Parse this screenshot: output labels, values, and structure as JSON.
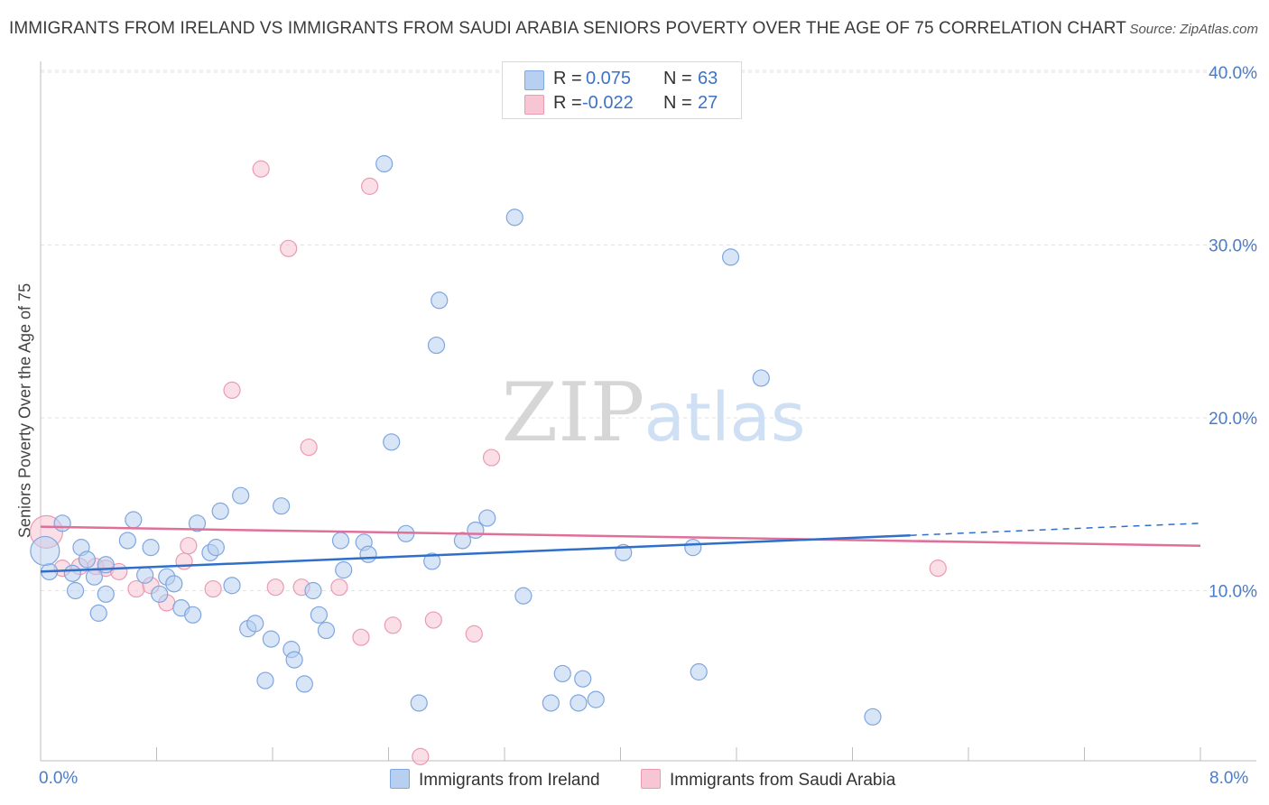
{
  "header": {
    "title": "IMMIGRANTS FROM IRELAND VS IMMIGRANTS FROM SAUDI ARABIA SENIORS POVERTY OVER THE AGE OF 75 CORRELATION CHART",
    "source": "Source: ZipAtlas.com"
  },
  "watermark": {
    "zip": "ZIP",
    "atlas": "atlas"
  },
  "legend": {
    "rows": [
      {
        "r_label": "R =",
        "r_value": "0.075",
        "n_label": "N =",
        "n_value": "63"
      },
      {
        "r_label": "R =",
        "r_value": "-0.022",
        "n_label": "N =",
        "n_value": "27"
      }
    ]
  },
  "colors": {
    "ireland_fill": "#b8d0f0",
    "ireland_stroke": "#7ea6e0",
    "ireland_line": "#2f6fc9",
    "saudi_fill": "#f7c5d3",
    "saudi_stroke": "#eb9ab4",
    "saudi_line": "#e0709a",
    "tick_text": "#4a7cc7",
    "grid": "#e2e2e2"
  },
  "chart_data": {
    "type": "scatter",
    "title": "IMMIGRANTS FROM IRELAND VS IMMIGRANTS FROM SAUDI ARABIA SENIORS POVERTY OVER THE AGE OF 75 CORRELATION CHART",
    "xlabel": "",
    "ylabel": "Seniors Poverty Over the Age of 75",
    "xlim": [
      0,
      8
    ],
    "ylim": [
      0,
      40
    ],
    "x_tick_labels": [
      "0.0%",
      "8.0%"
    ],
    "y_ticks": [
      10,
      20,
      30,
      40
    ],
    "y_tick_labels": [
      "10.0%",
      "20.0%",
      "30.0%",
      "40.0%"
    ],
    "grid": true,
    "legend_position": "top-center",
    "series": [
      {
        "name": "Immigrants from Ireland",
        "r": 0.075,
        "n": 63,
        "trend": {
          "x0": 0,
          "y0": 11.1,
          "x1": 6.0,
          "y1": 13.2,
          "dashed_to_x": 8.0,
          "dashed_to_y": 13.9
        },
        "points": [
          [
            0.06,
            11.1
          ],
          [
            0.15,
            13.9
          ],
          [
            0.22,
            11.0
          ],
          [
            0.24,
            10.0
          ],
          [
            0.28,
            12.5
          ],
          [
            0.32,
            11.8
          ],
          [
            0.37,
            10.8
          ],
          [
            0.4,
            8.7
          ],
          [
            0.45,
            9.8
          ],
          [
            0.6,
            12.9
          ],
          [
            0.64,
            14.1
          ],
          [
            0.72,
            10.9
          ],
          [
            0.76,
            12.5
          ],
          [
            0.82,
            9.8
          ],
          [
            0.87,
            10.8
          ],
          [
            0.92,
            10.4
          ],
          [
            0.97,
            9.0
          ],
          [
            1.05,
            8.6
          ],
          [
            1.08,
            13.9
          ],
          [
            1.17,
            12.2
          ],
          [
            1.21,
            12.5
          ],
          [
            1.24,
            14.6
          ],
          [
            1.32,
            10.3
          ],
          [
            1.38,
            15.5
          ],
          [
            1.43,
            7.8
          ],
          [
            1.48,
            8.1
          ],
          [
            1.55,
            4.8
          ],
          [
            1.59,
            7.2
          ],
          [
            1.66,
            14.9
          ],
          [
            1.73,
            6.6
          ],
          [
            1.75,
            6.0
          ],
          [
            1.82,
            4.6
          ],
          [
            1.88,
            10.0
          ],
          [
            1.92,
            8.6
          ],
          [
            1.97,
            7.7
          ],
          [
            2.07,
            12.9
          ],
          [
            2.09,
            11.2
          ],
          [
            2.23,
            12.8
          ],
          [
            2.26,
            12.1
          ],
          [
            2.37,
            34.7
          ],
          [
            2.42,
            18.6
          ],
          [
            2.52,
            13.3
          ],
          [
            2.61,
            3.5
          ],
          [
            2.7,
            11.7
          ],
          [
            2.73,
            24.2
          ],
          [
            2.75,
            26.8
          ],
          [
            2.91,
            12.9
          ],
          [
            3.0,
            13.5
          ],
          [
            3.08,
            14.2
          ],
          [
            3.27,
            31.6
          ],
          [
            3.33,
            9.7
          ],
          [
            3.52,
            3.5
          ],
          [
            3.6,
            5.2
          ],
          [
            3.71,
            3.5
          ],
          [
            3.74,
            4.9
          ],
          [
            3.83,
            3.7
          ],
          [
            4.02,
            12.2
          ],
          [
            4.5,
            12.5
          ],
          [
            4.54,
            5.3
          ],
          [
            4.76,
            29.3
          ],
          [
            4.97,
            22.3
          ],
          [
            5.74,
            2.7
          ],
          [
            0.45,
            11.5
          ]
        ]
      },
      {
        "name": "Immigrants from Saudi Arabia",
        "r": -0.022,
        "n": 27,
        "trend": {
          "x0": 0,
          "y0": 13.7,
          "x1": 8.0,
          "y1": 12.6
        },
        "points": [
          [
            0.04,
            13.4
          ],
          [
            0.15,
            11.3
          ],
          [
            0.27,
            11.4
          ],
          [
            0.38,
            11.4
          ],
          [
            0.45,
            11.3
          ],
          [
            0.54,
            11.1
          ],
          [
            0.66,
            10.1
          ],
          [
            0.76,
            10.3
          ],
          [
            0.87,
            9.3
          ],
          [
            0.99,
            11.7
          ],
          [
            1.02,
            12.6
          ],
          [
            1.19,
            10.1
          ],
          [
            1.32,
            21.6
          ],
          [
            1.52,
            34.4
          ],
          [
            1.62,
            10.2
          ],
          [
            1.71,
            29.8
          ],
          [
            1.8,
            10.2
          ],
          [
            1.85,
            18.3
          ],
          [
            2.06,
            10.2
          ],
          [
            2.21,
            7.3
          ],
          [
            2.27,
            33.4
          ],
          [
            2.43,
            8.0
          ],
          [
            2.62,
            0.4
          ],
          [
            2.71,
            8.3
          ],
          [
            2.99,
            7.5
          ],
          [
            3.11,
            17.7
          ],
          [
            6.19,
            11.3
          ]
        ]
      }
    ]
  },
  "bottom_legend": {
    "items": [
      {
        "label": "Immigrants from Ireland"
      },
      {
        "label": "Immigrants from Saudi Arabia"
      }
    ]
  },
  "axes": {
    "y_axis_title": "Seniors Poverty Over the Age of 75",
    "x_min_label": "0.0%",
    "x_max_label": "8.0%"
  }
}
